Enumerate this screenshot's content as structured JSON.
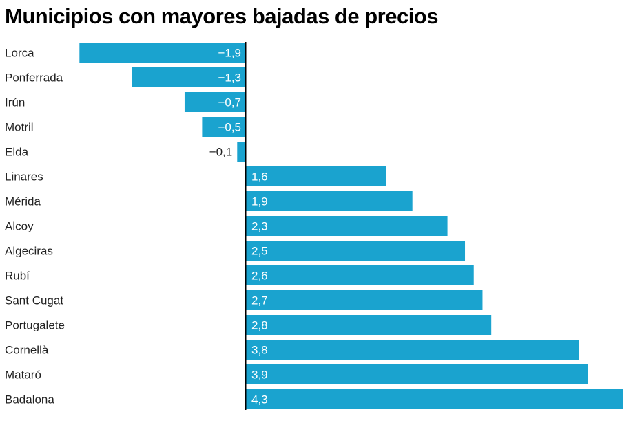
{
  "chart_data": {
    "type": "bar",
    "orientation": "horizontal",
    "title": "Municipios con mayores bajadas de precios",
    "categories": [
      "Lorca",
      "Ponferrada",
      "Irún",
      "Motril",
      "Elda",
      "Linares",
      "Mérida",
      "Alcoy",
      "Algeciras",
      "Rubí",
      "Sant Cugat",
      "Portugalete",
      "Cornellà",
      "Mataró",
      "Badalona"
    ],
    "values": [
      -1.9,
      -1.3,
      -0.7,
      -0.5,
      -0.1,
      1.6,
      1.9,
      2.3,
      2.5,
      2.6,
      2.7,
      2.8,
      3.8,
      3.9,
      4.3
    ],
    "value_labels": [
      "−1,9",
      "−1,3",
      "−0,7",
      "−0,5",
      "−0,1",
      "1,6",
      "1,9",
      "2,3",
      "2,5",
      "2,6",
      "2,7",
      "2,8",
      "3,8",
      "3,9",
      "4,3"
    ],
    "xlim": [
      -1.9,
      4.3
    ],
    "grid": false,
    "colors": {
      "bar": "#1aa3cf",
      "axis": "#000000",
      "label_inside": "#ffffff",
      "label_outside": "#222222"
    }
  }
}
